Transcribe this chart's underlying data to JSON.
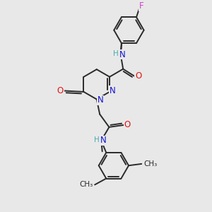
{
  "background_color": "#e8e8e8",
  "bond_color": "#2a2a2a",
  "bond_width": 1.4,
  "atom_colors": {
    "N": "#1414d0",
    "O": "#e01414",
    "F": "#cc44cc",
    "H": "#4aabb0",
    "C": "#2a2a2a"
  }
}
